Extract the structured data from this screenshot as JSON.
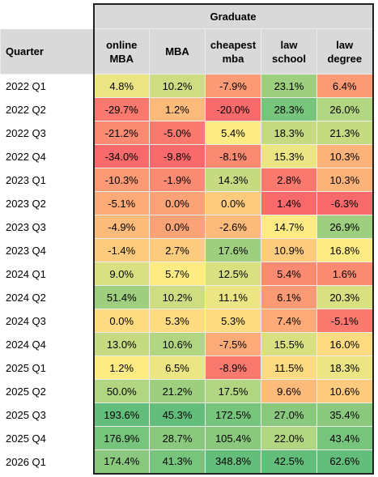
{
  "table": {
    "group_header": "Graduate",
    "row_header": "Quarter",
    "columns": [
      "online MBA",
      "MBA",
      "cheapest mba",
      "law school",
      "law degree"
    ],
    "color_scale": {
      "min": "#F8696B",
      "mid": "#FFEB84",
      "max": "#63BE7B"
    },
    "rows": [
      [
        "2022 Q1",
        "4.8%",
        "10.2%",
        "-7.9%",
        "23.1%",
        "6.4%"
      ],
      [
        "2022 Q2",
        "-29.7%",
        "1.2%",
        "-20.0%",
        "28.3%",
        "26.0%"
      ],
      [
        "2022 Q3",
        "-21.2%",
        "-5.0%",
        "5.4%",
        "18.3%",
        "21.3%"
      ],
      [
        "2022 Q4",
        "-34.0%",
        "-9.8%",
        "-8.1%",
        "15.3%",
        "10.3%"
      ],
      [
        "2023 Q1",
        "-10.3%",
        "-1.9%",
        "14.3%",
        "2.8%",
        "10.3%"
      ],
      [
        "2023 Q2",
        "-5.1%",
        "0.0%",
        "0.0%",
        "1.4%",
        "-6.3%"
      ],
      [
        "2023 Q3",
        "-4.9%",
        "0.0%",
        "-2.6%",
        "14.7%",
        "26.9%"
      ],
      [
        "2023 Q4",
        "-1.4%",
        "2.7%",
        "17.6%",
        "10.9%",
        "16.8%"
      ],
      [
        "2024 Q1",
        "9.0%",
        "5.7%",
        "12.5%",
        "5.4%",
        "1.6%"
      ],
      [
        "2024 Q2",
        "51.4%",
        "10.2%",
        "11.1%",
        "6.1%",
        "20.3%"
      ],
      [
        "2024 Q3",
        "0.0%",
        "5.3%",
        "5.3%",
        "7.4%",
        "-5.1%"
      ],
      [
        "2024 Q4",
        "13.0%",
        "10.6%",
        "-7.5%",
        "15.5%",
        "16.0%"
      ],
      [
        "2025 Q1",
        "1.2%",
        "6.5%",
        "-8.9%",
        "11.5%",
        "18.3%"
      ],
      [
        "2025 Q2",
        "50.0%",
        "21.2%",
        "17.5%",
        "9.6%",
        "10.6%"
      ],
      [
        "2025 Q3",
        "193.6%",
        "45.3%",
        "172.5%",
        "27.0%",
        "35.4%"
      ],
      [
        "2025 Q4",
        "176.9%",
        "28.7%",
        "105.4%",
        "22.0%",
        "43.4%"
      ],
      [
        "2026 Q1",
        "174.4%",
        "41.3%",
        "348.8%",
        "42.5%",
        "62.6%"
      ]
    ]
  }
}
